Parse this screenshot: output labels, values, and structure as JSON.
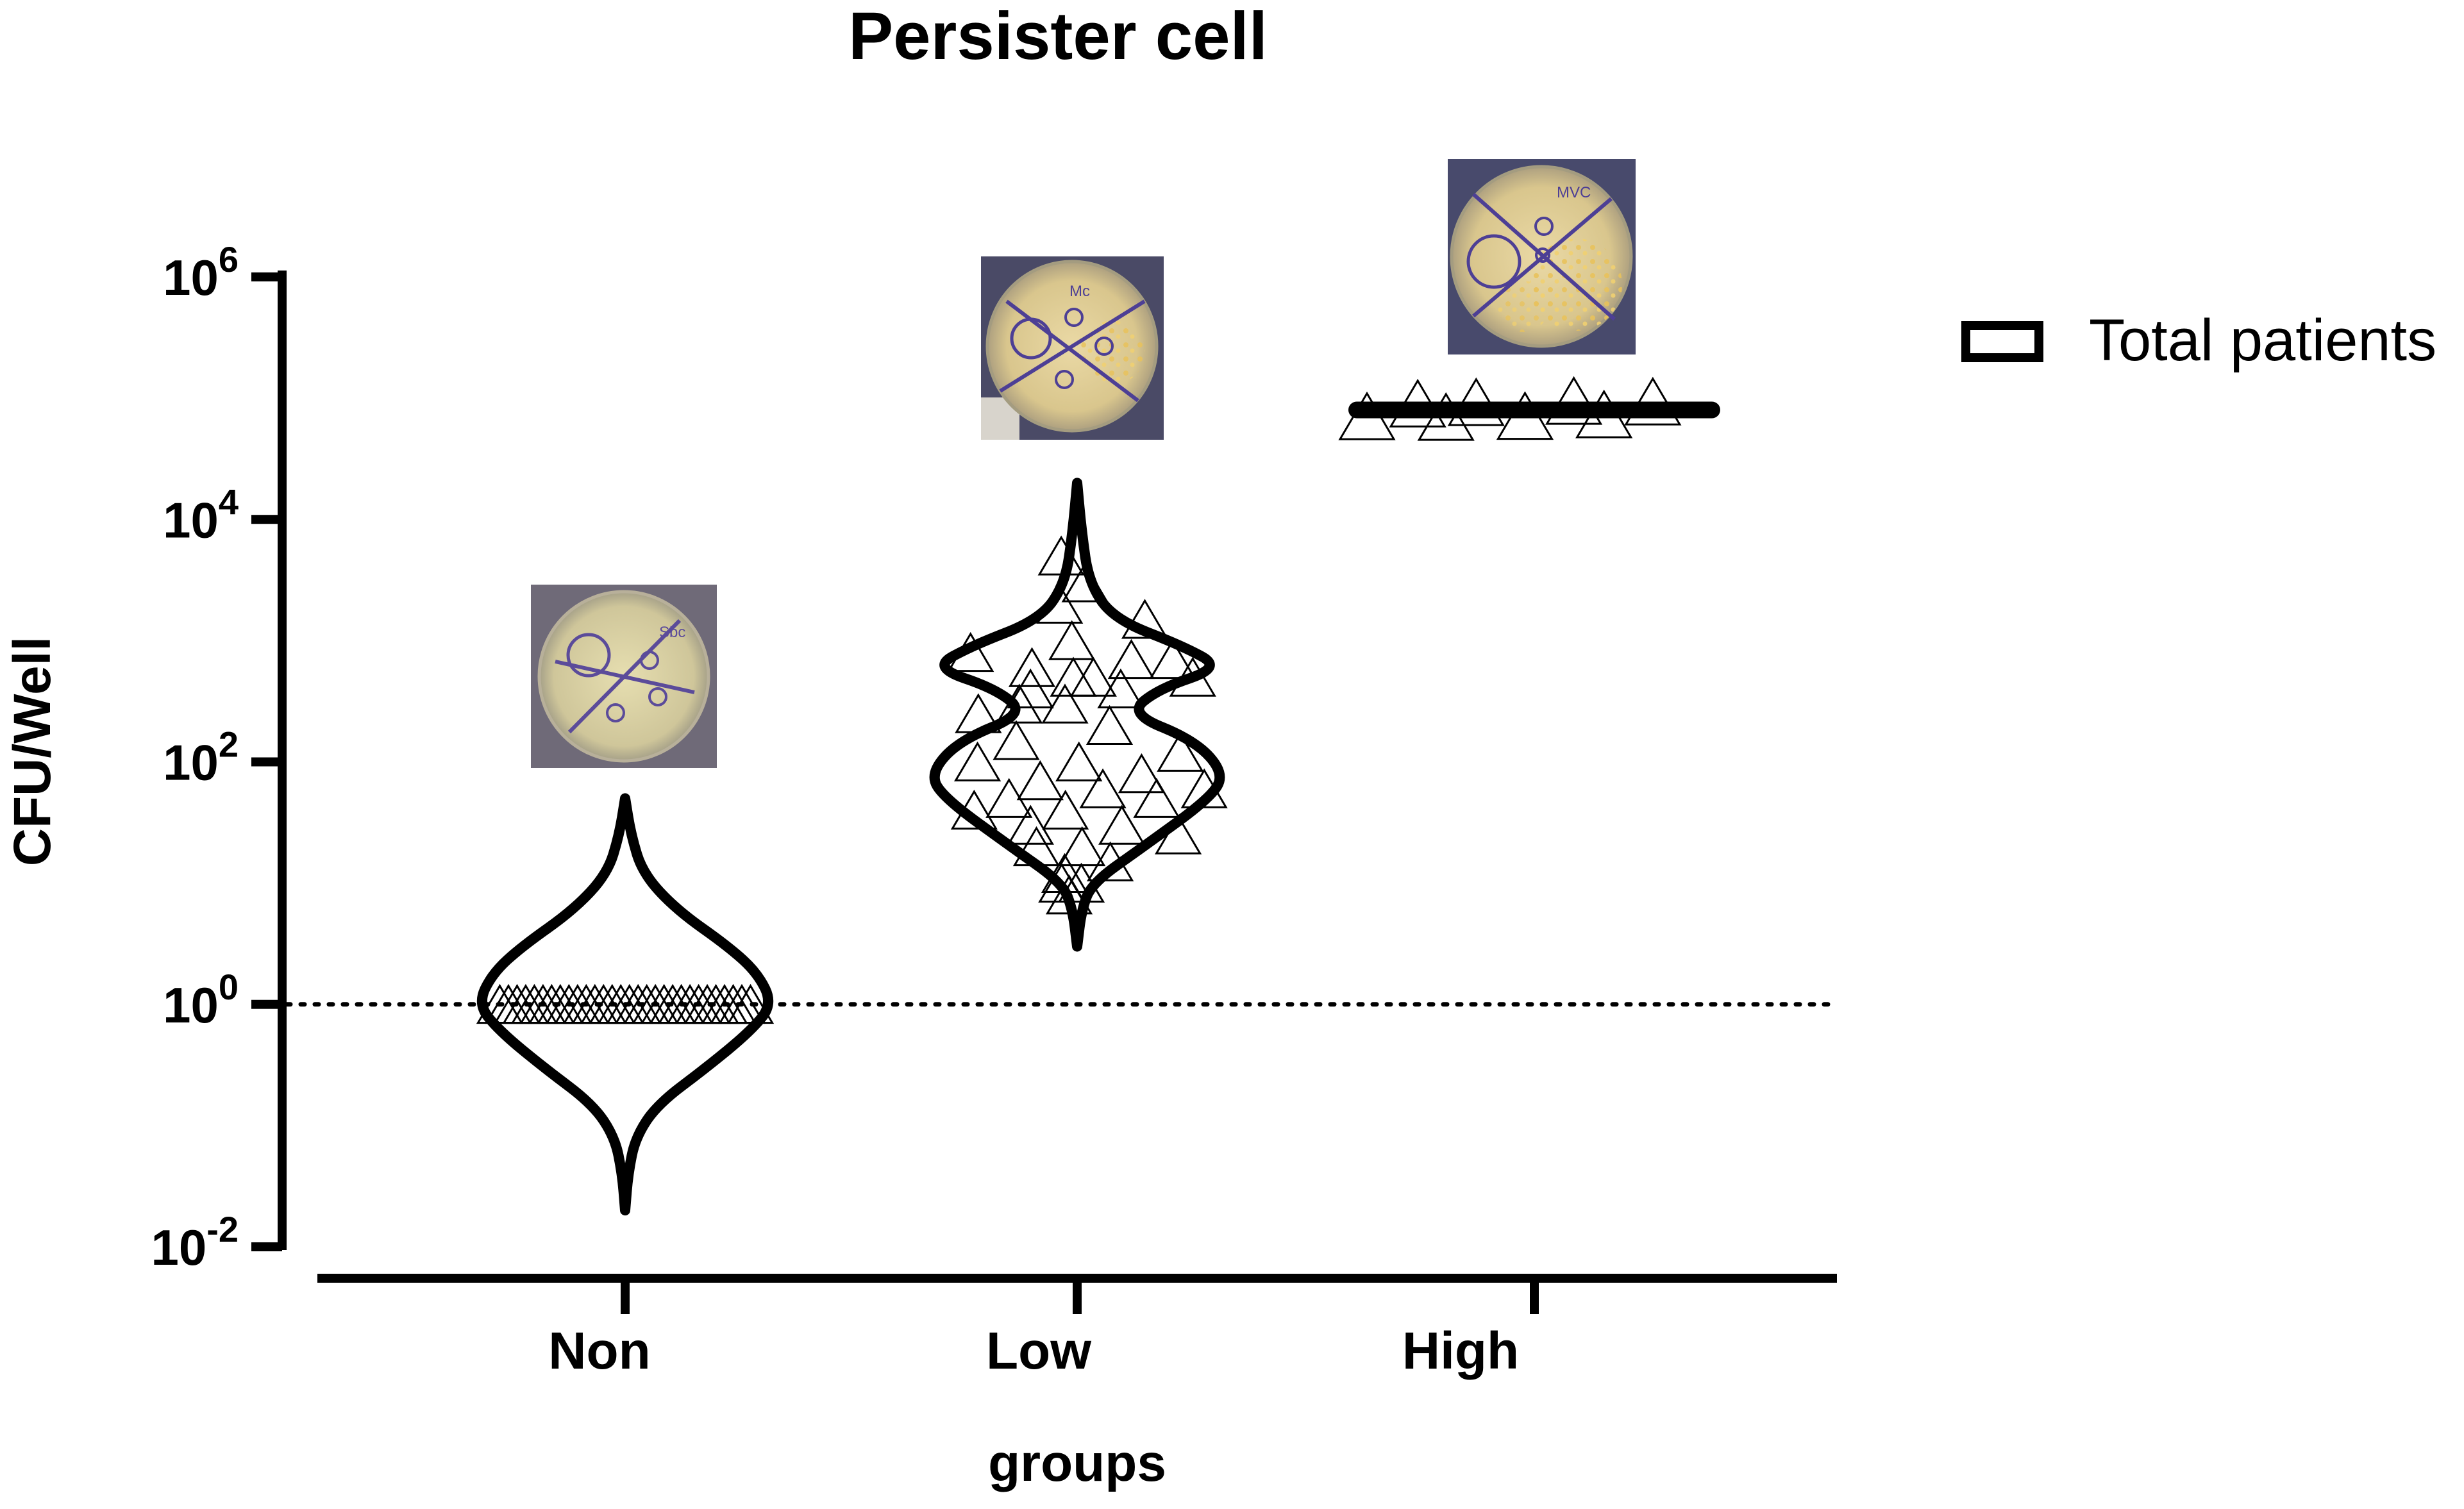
{
  "chart_data": {
    "type": "violin",
    "title": "Persister cell",
    "xlabel": "groups",
    "ylabel": "CFU/Well",
    "yscale": "log",
    "ylim": [
      0.01,
      1000000
    ],
    "yticks": [
      {
        "value": 0.01,
        "base": "10",
        "exp": "-2"
      },
      {
        "value": 1,
        "base": "10",
        "exp": "0"
      },
      {
        "value": 100,
        "base": "10",
        "exp": "2"
      },
      {
        "value": 10000,
        "base": "10",
        "exp": "4"
      },
      {
        "value": 1000000,
        "base": "10",
        "exp": "6"
      }
    ],
    "reference_line": {
      "y": 1,
      "style": "dotted"
    },
    "categories": [
      "Non",
      "Low",
      "High"
    ],
    "series": [
      {
        "name": "Total patients",
        "marker": "open-triangle",
        "groups": [
          {
            "category": "Non",
            "range": [
              0.02,
              50
            ],
            "points": [
              1,
              1,
              1,
              1,
              1,
              1,
              1,
              1,
              1,
              1,
              1,
              1,
              1,
              1,
              1,
              1,
              1,
              1,
              1,
              1,
              1,
              1,
              1,
              1,
              1,
              1,
              1,
              1,
              1,
              1
            ],
            "density": [
              [
                0.02,
                0.0
              ],
              [
                0.04,
                0.02
              ],
              [
                0.08,
                0.07
              ],
              [
                0.15,
                0.22
              ],
              [
                0.3,
                0.55
              ],
              [
                0.6,
                0.85
              ],
              [
                1,
                1.0
              ],
              [
                1.8,
                0.9
              ],
              [
                3,
                0.7
              ],
              [
                6,
                0.35
              ],
              [
                12,
                0.12
              ],
              [
                25,
                0.04
              ],
              [
                50,
                0.0
              ]
            ]
          },
          {
            "category": "Low",
            "range": [
              3,
              20000
            ],
            "points": [
              5000,
              3000,
              2000,
              1500,
              1000,
              800,
              700,
              600,
              500,
              500,
              400,
              400,
              300,
              250,
              200,
              150,
              120,
              100,
              100,
              80,
              70,
              60,
              60,
              50,
              50,
              40,
              40,
              30,
              30,
              25,
              20,
              20,
              15,
              12,
              10,
              10,
              8,
              700,
              500,
              300
            ],
            "density": [
              [
                3,
                0.0
              ],
              [
                6,
                0.03
              ],
              [
                10,
                0.1
              ],
              [
                20,
                0.45
              ],
              [
                50,
                0.9
              ],
              [
                80,
                1.0
              ],
              [
                150,
                0.8
              ],
              [
                250,
                0.35
              ],
              [
                400,
                0.55
              ],
              [
                600,
                0.98
              ],
              [
                900,
                0.72
              ],
              [
                1500,
                0.25
              ],
              [
                3000,
                0.08
              ],
              [
                8000,
                0.03
              ],
              [
                20000,
                0.0
              ]
            ]
          },
          {
            "category": "High",
            "range": [
              75000,
              90000
            ],
            "points": [
              80000,
              82000,
              79000,
              81000,
              80500,
              78000,
              83000,
              80000
            ],
            "density": [
              [
                75000,
                0.0
              ],
              [
                78000,
                0.85
              ],
              [
                80000,
                1.0
              ],
              [
                83000,
                0.85
              ],
              [
                90000,
                0.0
              ]
            ]
          }
        ]
      }
    ],
    "legend": {
      "position": "top-right",
      "entries": [
        "Total patients"
      ]
    },
    "plate_images": [
      "Non",
      "Low",
      "High"
    ]
  },
  "plate_labels": {
    "Non": "Sbc",
    "Low": "Mc",
    "High": "MVC"
  }
}
